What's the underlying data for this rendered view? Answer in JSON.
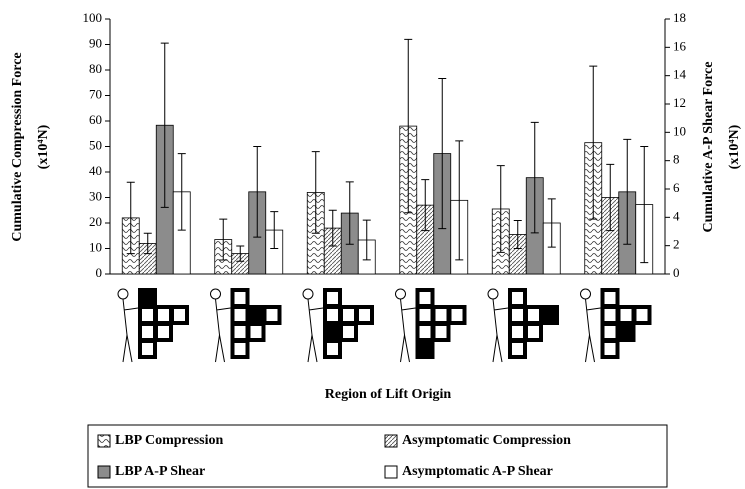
{
  "chart_data": {
    "type": "bar",
    "y_label": "Cumulative Compression Force",
    "y_label_unit": "(x10⁴N)",
    "y2_label": "Cumulative A-P Shear Force",
    "y2_label_unit": "(x10⁴N)",
    "x_label": "Region of Lift Origin",
    "categories": [
      null,
      null,
      null,
      null,
      null,
      null
    ],
    "ylim": [
      0,
      100
    ],
    "yticks": [
      0,
      10,
      20,
      30,
      40,
      50,
      60,
      70,
      80,
      90,
      100
    ],
    "y2lim": [
      0,
      18
    ],
    "y2ticks": [
      0,
      2,
      4,
      6,
      8,
      10,
      12,
      14,
      16,
      18
    ],
    "series": [
      {
        "name": "LBP Compression",
        "color": "wave",
        "axis": "y",
        "values": [
          22,
          13.5,
          32,
          58,
          25.5,
          51.5
        ],
        "errors": [
          14,
          8,
          16,
          34,
          17,
          30
        ]
      },
      {
        "name": "Asymptomatic Compression",
        "color": "hatch",
        "axis": "y",
        "values": [
          12,
          8,
          18,
          27,
          15.5,
          30
        ],
        "errors": [
          4,
          3,
          7,
          10,
          5.5,
          13
        ]
      },
      {
        "name": "LBP A-P Shear",
        "color": "#8c8c8c",
        "axis": "y2",
        "values": [
          10.5,
          5.8,
          4.3,
          8.5,
          6.8,
          5.8
        ],
        "errors": [
          5.8,
          3.2,
          2.2,
          5.3,
          3.9,
          3.7
        ]
      },
      {
        "name": "Asymptomatic A-P Shear",
        "color": "#ffffff",
        "axis": "y2",
        "values": [
          5.8,
          3.1,
          2.4,
          5.2,
          3.6,
          4.9
        ],
        "errors": [
          2.7,
          1.3,
          1.4,
          4.2,
          1.7,
          4.1
        ]
      }
    ]
  }
}
